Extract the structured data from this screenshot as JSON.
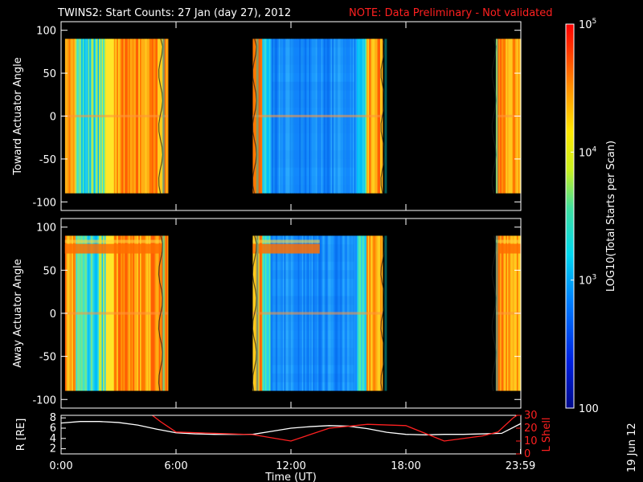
{
  "title": "TWINS2: Start Counts: 27 Jan (day  27), 2012",
  "note": "NOTE: Data Preliminary - Not validated",
  "date_stamp": "19 Jun 12",
  "colors": {
    "background": "#000000",
    "axis": "#ffffff",
    "note": "#ff2020",
    "ltrace": "#ff2020",
    "rtrace": "#ffffff"
  },
  "chart_data": [
    {
      "type": "heatmap",
      "name": "toward",
      "ylabel": "Toward Actuator Angle",
      "yticks": [
        "100",
        "50",
        "0",
        "-50",
        "-100"
      ],
      "ytick_values": [
        100,
        50,
        0,
        -50,
        -100
      ],
      "ylim": [
        -110,
        110
      ],
      "y_data_range": [
        -90,
        90
      ],
      "xlim": [
        0,
        24
      ],
      "data_intervals_hours": [
        [
          0.2,
          5.6
        ],
        [
          10.0,
          16.8
        ],
        [
          22.7,
          24.0
        ]
      ],
      "arc_hours": [
        5.2,
        10.1,
        16.8,
        22.6
      ]
    },
    {
      "type": "heatmap",
      "name": "away",
      "ylabel": "Away Actuator Angle",
      "yticks": [
        "100",
        "50",
        "0",
        "-50",
        "-100"
      ],
      "ytick_values": [
        100,
        50,
        0,
        -50,
        -100
      ],
      "ylim": [
        -110,
        110
      ],
      "y_data_range": [
        -90,
        90
      ],
      "xlim": [
        0,
        24
      ],
      "data_intervals_hours": [
        [
          0.2,
          5.6
        ],
        [
          10.0,
          16.8
        ],
        [
          22.7,
          24.0
        ]
      ],
      "arc_hours": [
        5.2,
        10.1,
        16.8,
        22.6
      ]
    },
    {
      "type": "line",
      "name": "orbit",
      "xlabel": "Time (UT)",
      "xticks": [
        "0:00",
        "6:00",
        "12:00",
        "18:00",
        "23:59"
      ],
      "xtick_hours": [
        0,
        6,
        12,
        18,
        23.98
      ],
      "left_axis": {
        "label": "R [RE]",
        "ticks": [
          "8",
          "6",
          "4",
          "2"
        ],
        "tick_values": [
          8,
          6,
          4,
          2
        ],
        "range": [
          1,
          8.5
        ]
      },
      "right_axis": {
        "label": "L Shell",
        "ticks": [
          "30",
          "20",
          "10",
          "0"
        ],
        "tick_values": [
          30,
          20,
          10,
          0
        ],
        "range": [
          0,
          30
        ]
      },
      "series": [
        {
          "name": "R",
          "x": [
            0,
            1,
            2,
            3,
            4,
            5,
            6,
            7,
            8,
            9,
            10,
            11,
            12,
            13,
            14,
            15,
            16,
            17,
            18,
            19,
            20,
            21,
            22,
            23,
            24
          ],
          "values": [
            7.0,
            7.3,
            7.3,
            7.1,
            6.6,
            5.8,
            5.1,
            4.9,
            4.8,
            4.8,
            4.8,
            5.4,
            6.0,
            6.3,
            6.5,
            6.4,
            5.9,
            5.2,
            4.8,
            4.7,
            4.8,
            4.8,
            4.9,
            5.0,
            6.9
          ]
        },
        {
          "name": "L Shell",
          "x": [
            4.5,
            5.2,
            6,
            8,
            10,
            12,
            14,
            16,
            18,
            20,
            22,
            22.8,
            23.6,
            24
          ],
          "values": [
            33,
            25,
            17,
            16,
            15,
            10,
            20,
            23,
            22,
            10,
            14,
            17,
            28,
            32
          ]
        }
      ]
    },
    {
      "type": "heatmap",
      "name": "colorbar",
      "ylabel": "LOG10(Total Starts per Scan)",
      "ticks": [
        "10",
        "10",
        "10",
        "100"
      ],
      "tick_sup": [
        "5",
        "4",
        "3",
        ""
      ],
      "tick_values": [
        100000,
        10000,
        1000,
        100
      ],
      "range": [
        100,
        100000
      ]
    }
  ]
}
